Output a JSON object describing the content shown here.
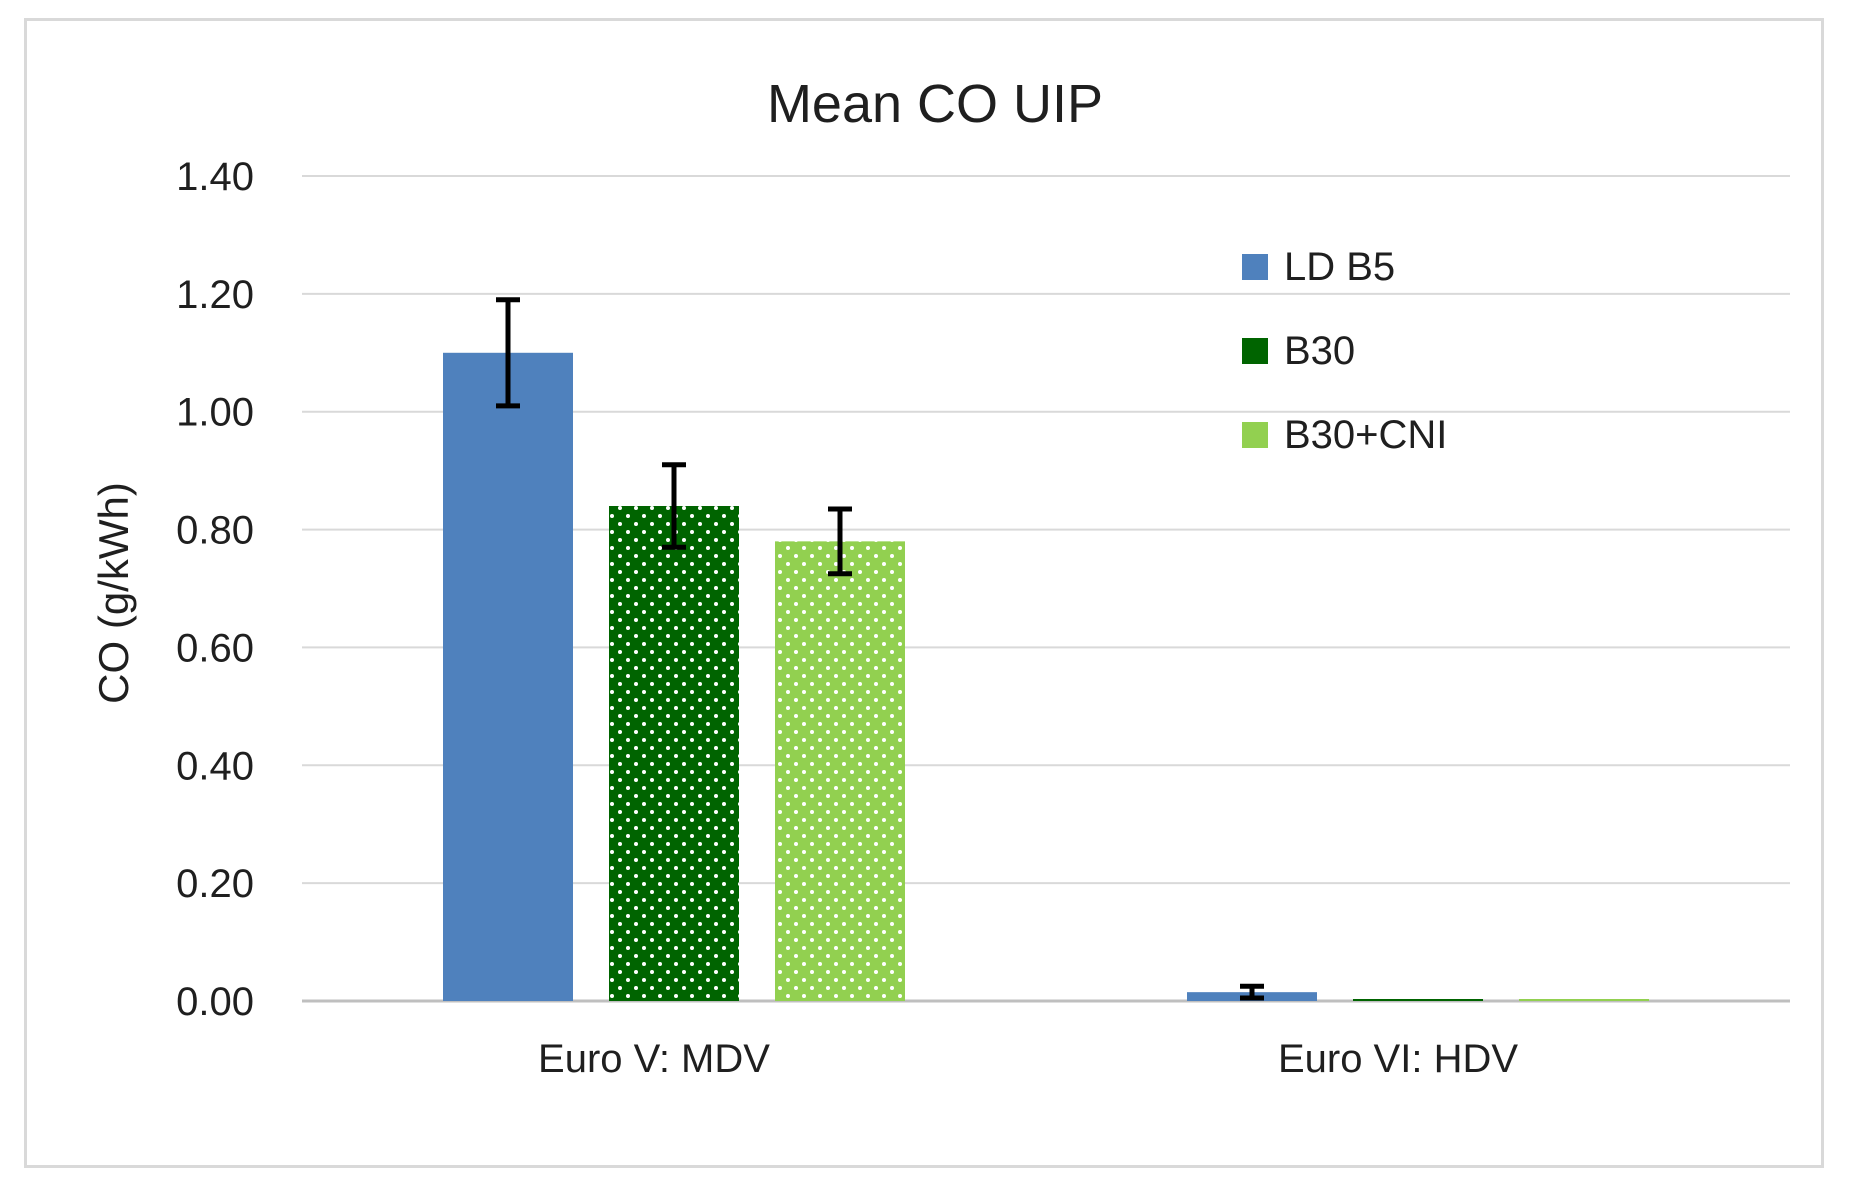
{
  "chart_data": {
    "type": "bar",
    "title": "Mean CO UIP",
    "xlabel": "",
    "ylabel": "CO (g/kWh)",
    "ylim": [
      0,
      1.4
    ],
    "ytick_step": 0.2,
    "ytick_labels": [
      "0.00",
      "0.20",
      "0.40",
      "0.60",
      "0.80",
      "1.00",
      "1.20",
      "1.40"
    ],
    "grid": true,
    "legend_position": "top-right",
    "categories": [
      "Euro V: MDV",
      "Euro VI: HDV"
    ],
    "series": [
      {
        "name": "LD B5",
        "color": "#4f81bd",
        "pattern": "solid",
        "values": [
          1.1,
          0.015
        ],
        "errors": [
          0.09,
          0.01
        ]
      },
      {
        "name": "B30",
        "color": "#006400",
        "pattern": "dots",
        "values": [
          0.84,
          0.003
        ],
        "errors": [
          0.07,
          0.0
        ]
      },
      {
        "name": "B30+CNI",
        "color": "#92d050",
        "pattern": "dots",
        "values": [
          0.78,
          0.003
        ],
        "errors": [
          0.055,
          0.0
        ]
      }
    ]
  }
}
